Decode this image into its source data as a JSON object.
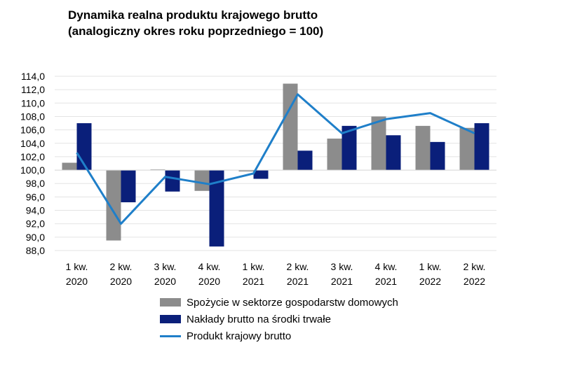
{
  "chart_data": {
    "type": "bar",
    "title": "Dynamika realna produktu krajowego brutto",
    "subtitle": "(analogiczny okres roku poprzedniego = 100)",
    "categories": [
      [
        "1 kw.",
        "2020"
      ],
      [
        "2 kw.",
        "2020"
      ],
      [
        "3 kw.",
        "2020"
      ],
      [
        "4 kw.",
        "2020"
      ],
      [
        "1 kw.",
        "2021"
      ],
      [
        "2 kw.",
        "2021"
      ],
      [
        "3 kw.",
        "2021"
      ],
      [
        "4 kw.",
        "2021"
      ],
      [
        "1 kw.",
        "2022"
      ],
      [
        "2 kw.",
        "2022"
      ]
    ],
    "baseline": 100,
    "ylim": [
      88,
      114
    ],
    "yticks": [
      "88,0",
      "90,0",
      "92,0",
      "94,0",
      "96,0",
      "98,0",
      "100,0",
      "102,0",
      "104,0",
      "106,0",
      "108,0",
      "110,0",
      "112,0",
      "114,0"
    ],
    "grid": true,
    "legend_position": "bottom",
    "series": [
      {
        "name": "Spożycie w sektorze gospodarstw domowych",
        "type": "bar",
        "color": "#8c8c8c",
        "values": [
          101.1,
          89.5,
          100.1,
          96.9,
          99.8,
          112.9,
          104.7,
          108.0,
          106.6,
          106.3
        ]
      },
      {
        "name": "Nakłady brutto na środki trwałe",
        "type": "bar",
        "color": "#0a1f7a",
        "values": [
          107.0,
          95.2,
          96.8,
          88.6,
          98.7,
          102.9,
          106.6,
          105.2,
          104.2,
          107.0
        ]
      },
      {
        "name": "Produkt krajowy brutto",
        "type": "line",
        "color": "#1f7fc9",
        "values": [
          102.6,
          92.0,
          99.0,
          97.9,
          99.5,
          111.3,
          105.5,
          107.6,
          108.5,
          105.5
        ]
      }
    ]
  }
}
